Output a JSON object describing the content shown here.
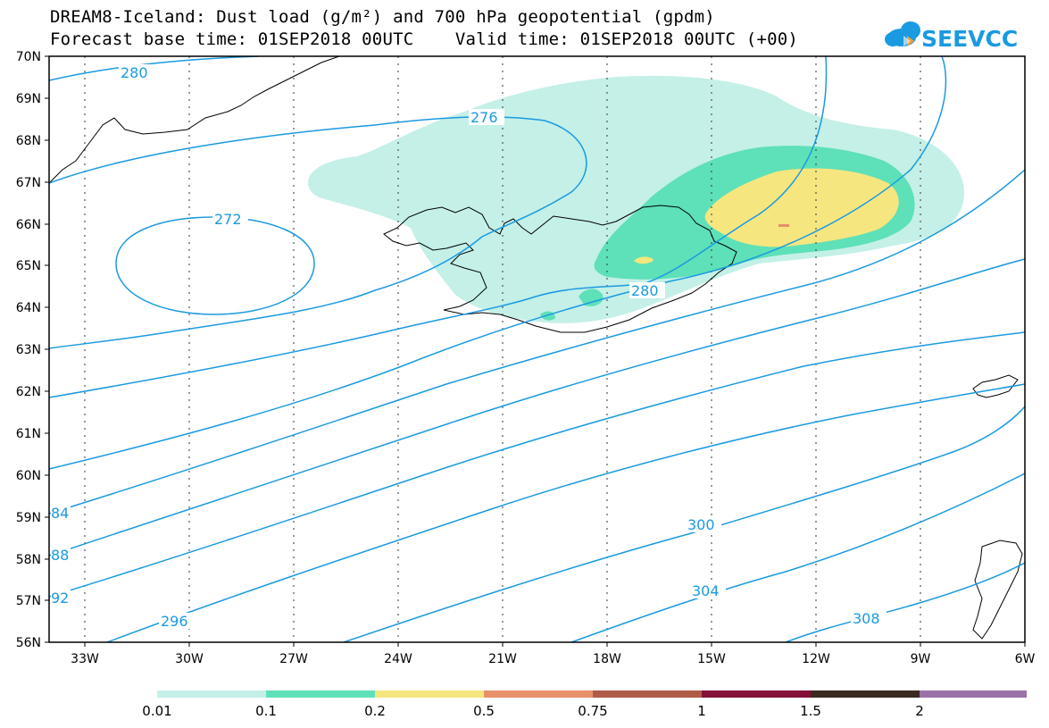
{
  "title_line1": "DREAM8-Iceland: Dust load (g/m²) and 700 hPa geopotential (gpdm)",
  "title_line2": "Forecast base time: 01SEP2018 00UTC    Valid time: 01SEP2018 00UTC (+00)",
  "logo_text": "SEEVCCC",
  "map": {
    "lon_range": [
      -34.2,
      -6.0
    ],
    "lat_range": [
      56,
      70
    ],
    "lon_ticks": [
      -33,
      -30,
      -27,
      -24,
      -21,
      -18,
      -15,
      -12,
      -9,
      -6
    ],
    "lon_labels": [
      "33W",
      "30W",
      "27W",
      "24W",
      "21W",
      "18W",
      "15W",
      "12W",
      "9W",
      "6W"
    ],
    "lat_ticks": [
      56,
      57,
      58,
      59,
      60,
      61,
      62,
      63,
      64,
      65,
      66,
      67,
      68,
      69,
      70
    ],
    "lat_labels": [
      "56N",
      "57N",
      "58N",
      "59N",
      "60N",
      "61N",
      "62N",
      "63N",
      "64N",
      "65N",
      "66N",
      "67N",
      "68N",
      "69N",
      "70N"
    ],
    "contour_color": "#1a9ae0",
    "contour_labels": [
      "280",
      "276",
      "272",
      "280",
      "84",
      "88",
      "92",
      "296",
      "300",
      "304",
      "308"
    ]
  },
  "colorbar": {
    "colors": [
      "#c4f0e8",
      "#5ee0b8",
      "#f5e680",
      "#e8906a",
      "#b05a48",
      "#84103a",
      "#3a2a20",
      "#9a72a8"
    ],
    "labels": [
      "0.01",
      "0.1",
      "0.2",
      "0.5",
      "0.75",
      "1",
      "1.5",
      "2"
    ]
  }
}
